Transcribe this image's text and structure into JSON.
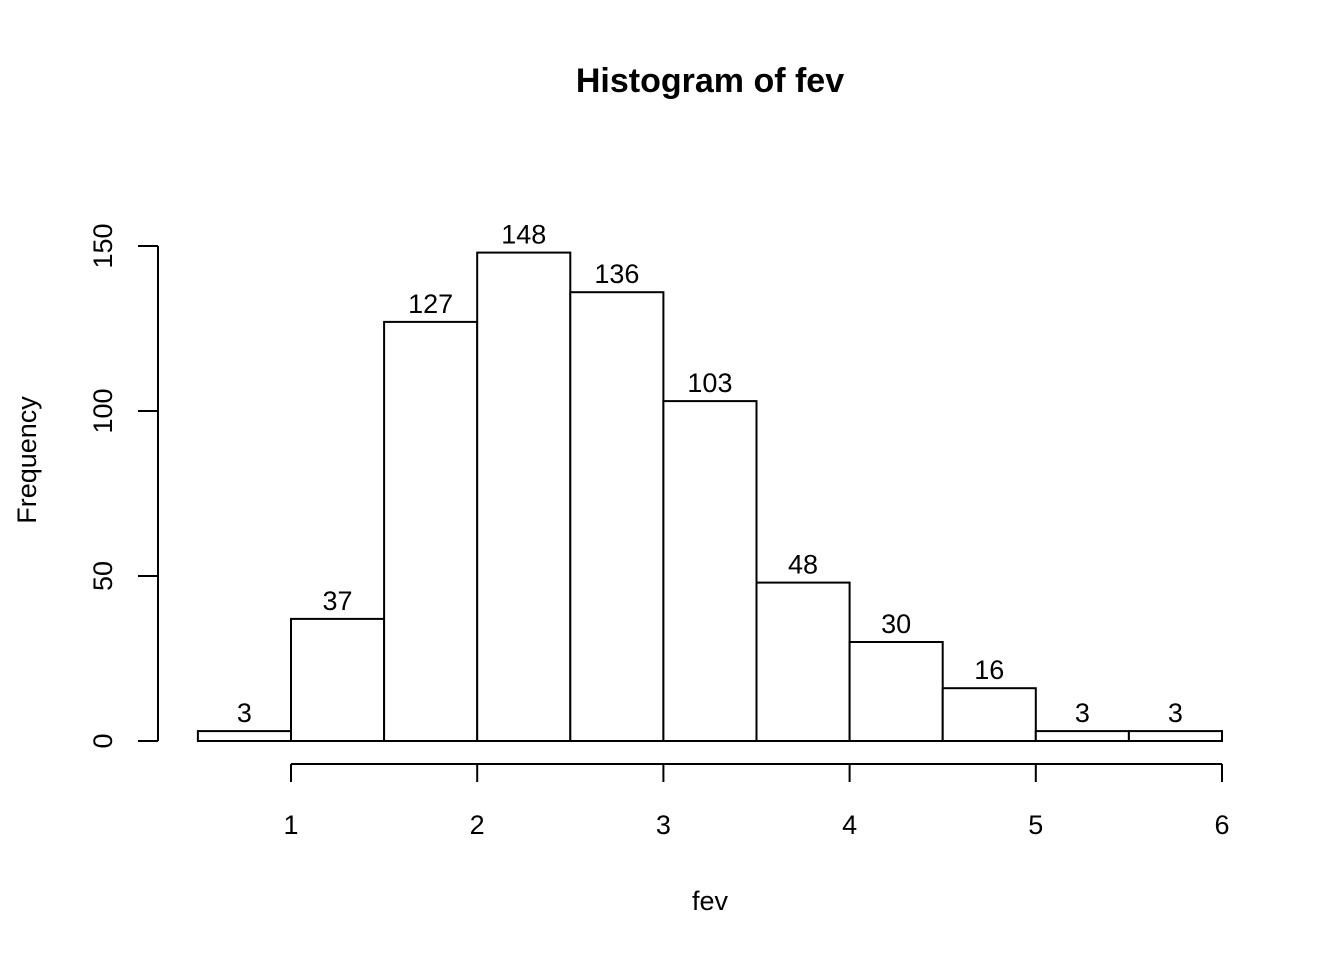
{
  "chart_data": {
    "type": "bar",
    "title": "Histogram of fev",
    "xlabel": "fev",
    "ylabel": "Frequency",
    "bin_edges": [
      0.5,
      1.0,
      1.5,
      2.0,
      2.5,
      3.0,
      3.5,
      4.0,
      4.5,
      5.0,
      5.5,
      6.0
    ],
    "values": [
      3,
      37,
      127,
      148,
      136,
      103,
      48,
      30,
      16,
      3,
      3
    ],
    "bar_labels": [
      "3",
      "37",
      "127",
      "148",
      "136",
      "103",
      "48",
      "30",
      "16",
      "3",
      "3"
    ],
    "x_ticks": [
      1,
      2,
      3,
      4,
      5,
      6
    ],
    "x_tick_labels": [
      "1",
      "2",
      "3",
      "4",
      "5",
      "6"
    ],
    "y_ticks": [
      0,
      50,
      100,
      150
    ],
    "y_tick_labels": [
      "0",
      "50",
      "100",
      "150"
    ],
    "xlim": [
      1,
      6
    ],
    "ylim": [
      0,
      150
    ],
    "grid": false,
    "legend": "none",
    "colors": {
      "bar_fill": "#ffffff",
      "bar_stroke": "#000000",
      "text": "#000000"
    }
  }
}
